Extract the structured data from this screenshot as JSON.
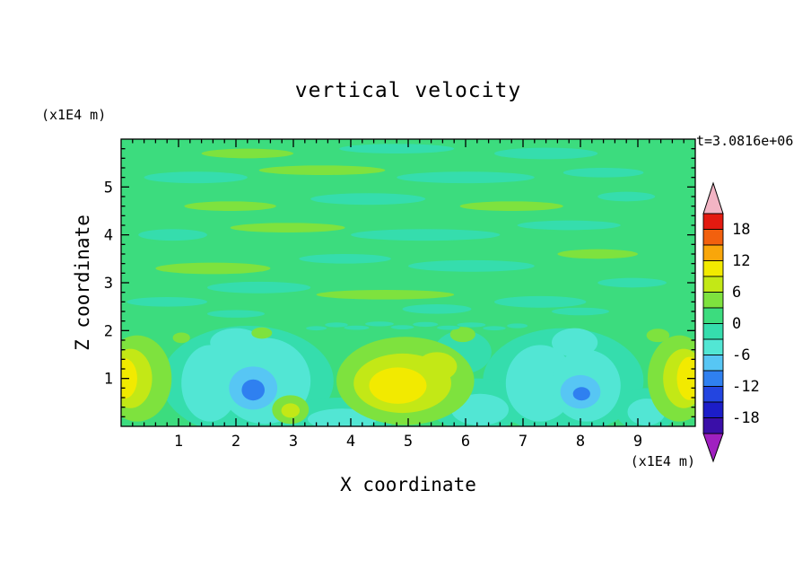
{
  "title": "vertical velocity",
  "timestamp": "t=3.0816e+06",
  "axes": {
    "x_label": "X coordinate",
    "z_label": "Z coordinate",
    "x_unit": "(x1E4 m)",
    "z_unit": "(x1E4 m)"
  },
  "chart_data": {
    "type": "heatmap",
    "title": "vertical velocity",
    "xlabel": "X coordinate",
    "ylabel": "Z coordinate",
    "x_units": "(x1E4 m)",
    "y_units": "(x1E4 m)",
    "time_annotation": "t=3.0816e+06",
    "xlim": [
      0,
      10
    ],
    "zlim": [
      0,
      6
    ],
    "x_ticks": [
      1,
      2,
      3,
      4,
      5,
      6,
      7,
      8,
      9
    ],
    "z_ticks": [
      1,
      2,
      3,
      4,
      5
    ],
    "contour_interval": 3,
    "levels": [
      -21,
      -18,
      -15,
      -12,
      -9,
      -6,
      -3,
      0,
      3,
      6,
      9,
      12,
      15,
      18,
      21
    ],
    "colorbar": {
      "tick_labels": [
        "18",
        "12",
        "6",
        "0",
        "-6",
        "-12",
        "-18"
      ],
      "box_colors_high_to_low": [
        "#e31a10",
        "#f2600e",
        "#f9a60a",
        "#f2ea00",
        "#c3e816",
        "#7ee23e",
        "#3cdc7e",
        "#35ddad",
        "#52e6d4",
        "#57c6f4",
        "#2f80f0",
        "#2345e0",
        "#1c1dc8",
        "#3a0fa8"
      ],
      "over_color": "#f2b4c4",
      "under_color": "#a020c0"
    },
    "background_level_color": "#3cdc7e",
    "field_summary": "Vertical velocity field: mostly near-zero (green) with weak turbulent streaks aloft (z>2); convective layer below z~2 with updraft cores of +9 to +12 near x~0.2, x~5 and x~9.8, and downdraft cores of -9 to -12 near x~2.3 and x~8.0 embedded in broader -3 to -6 regions",
    "feature_format": "[x, z, rx, rz, color_index_into_box_colors_high_to_low]",
    "features": [
      [
        0.8,
        2.6,
        0.7,
        0.1,
        7
      ],
      [
        2.4,
        2.9,
        0.9,
        0.12,
        7
      ],
      [
        4.6,
        2.75,
        1.2,
        0.1,
        5
      ],
      [
        7.3,
        2.6,
        0.8,
        0.12,
        7
      ],
      [
        8.9,
        3.0,
        0.6,
        0.1,
        7
      ],
      [
        1.6,
        3.3,
        1.0,
        0.12,
        5
      ],
      [
        3.9,
        3.5,
        0.8,
        0.1,
        7
      ],
      [
        6.1,
        3.35,
        1.1,
        0.12,
        7
      ],
      [
        8.3,
        3.6,
        0.7,
        0.1,
        5
      ],
      [
        0.9,
        4.0,
        0.6,
        0.12,
        7
      ],
      [
        2.9,
        4.15,
        1.0,
        0.1,
        5
      ],
      [
        5.3,
        4.0,
        1.3,
        0.12,
        7
      ],
      [
        7.8,
        4.2,
        0.9,
        0.1,
        7
      ],
      [
        1.9,
        4.6,
        0.8,
        0.1,
        5
      ],
      [
        4.3,
        4.75,
        1.0,
        0.12,
        7
      ],
      [
        6.8,
        4.6,
        0.9,
        0.1,
        5
      ],
      [
        8.8,
        4.8,
        0.5,
        0.1,
        7
      ],
      [
        1.3,
        5.2,
        0.9,
        0.12,
        7
      ],
      [
        3.5,
        5.35,
        1.1,
        0.1,
        5
      ],
      [
        6.0,
        5.2,
        1.2,
        0.12,
        7
      ],
      [
        8.4,
        5.3,
        0.7,
        0.1,
        7
      ],
      [
        2.2,
        5.7,
        0.8,
        0.1,
        5
      ],
      [
        4.8,
        5.8,
        1.0,
        0.1,
        7
      ],
      [
        7.4,
        5.7,
        0.9,
        0.12,
        7
      ],
      [
        5.5,
        2.45,
        0.6,
        0.1,
        7
      ],
      [
        2.0,
        2.35,
        0.5,
        0.08,
        7
      ],
      [
        8.0,
        2.4,
        0.5,
        0.08,
        7
      ],
      [
        2.2,
        0.95,
        1.5,
        1.15,
        7
      ],
      [
        7.7,
        0.95,
        1.4,
        1.1,
        7
      ],
      [
        6.2,
        0.45,
        0.85,
        0.55,
        7
      ],
      [
        3.8,
        0.2,
        1.0,
        0.4,
        7
      ],
      [
        9.15,
        0.35,
        0.55,
        0.45,
        7
      ],
      [
        5.95,
        1.55,
        0.5,
        0.45,
        7
      ],
      [
        1.55,
        0.9,
        0.5,
        0.8,
        8
      ],
      [
        2.5,
        0.95,
        0.8,
        0.9,
        8
      ],
      [
        2.0,
        1.75,
        0.45,
        0.3,
        8
      ],
      [
        7.3,
        0.9,
        0.6,
        0.8,
        8
      ],
      [
        8.1,
        0.85,
        0.6,
        0.75,
        8
      ],
      [
        7.9,
        1.75,
        0.4,
        0.3,
        8
      ],
      [
        6.25,
        0.35,
        0.5,
        0.33,
        8
      ],
      [
        3.85,
        0.15,
        0.6,
        0.22,
        8
      ],
      [
        9.15,
        0.3,
        0.33,
        0.28,
        8
      ],
      [
        2.3,
        0.8,
        0.42,
        0.45,
        9
      ],
      [
        8.0,
        0.72,
        0.35,
        0.35,
        9
      ],
      [
        2.3,
        0.76,
        0.2,
        0.22,
        10
      ],
      [
        8.02,
        0.68,
        0.15,
        0.14,
        10
      ],
      [
        0.28,
        1.0,
        0.6,
        0.9,
        5
      ],
      [
        4.95,
        0.95,
        1.2,
        0.92,
        5
      ],
      [
        9.72,
        1.0,
        0.55,
        0.9,
        5
      ],
      [
        2.95,
        0.35,
        0.32,
        0.3,
        5
      ],
      [
        5.95,
        1.92,
        0.22,
        0.16,
        5
      ],
      [
        2.45,
        1.95,
        0.18,
        0.12,
        5
      ],
      [
        9.35,
        1.9,
        0.2,
        0.14,
        5
      ],
      [
        1.05,
        1.85,
        0.15,
        0.11,
        5
      ],
      [
        0.16,
        1.0,
        0.38,
        0.62,
        4
      ],
      [
        4.9,
        0.9,
        0.85,
        0.62,
        4
      ],
      [
        5.5,
        1.25,
        0.35,
        0.3,
        4
      ],
      [
        9.8,
        1.0,
        0.36,
        0.62,
        4
      ],
      [
        2.95,
        0.33,
        0.16,
        0.15,
        4
      ],
      [
        0.06,
        1.0,
        0.22,
        0.42,
        3
      ],
      [
        4.82,
        0.85,
        0.5,
        0.38,
        3
      ],
      [
        9.9,
        1.0,
        0.22,
        0.45,
        3
      ],
      [
        3.4,
        2.05,
        0.18,
        0.045,
        7
      ],
      [
        3.75,
        2.12,
        0.2,
        0.05,
        7
      ],
      [
        4.1,
        2.06,
        0.22,
        0.045,
        7
      ],
      [
        4.5,
        2.14,
        0.25,
        0.05,
        7
      ],
      [
        4.9,
        2.07,
        0.2,
        0.045,
        7
      ],
      [
        5.3,
        2.13,
        0.22,
        0.05,
        7
      ],
      [
        5.7,
        2.06,
        0.2,
        0.045,
        7
      ],
      [
        6.1,
        2.12,
        0.25,
        0.05,
        7
      ],
      [
        6.5,
        2.05,
        0.2,
        0.045,
        7
      ],
      [
        6.9,
        2.1,
        0.18,
        0.05,
        7
      ]
    ]
  }
}
